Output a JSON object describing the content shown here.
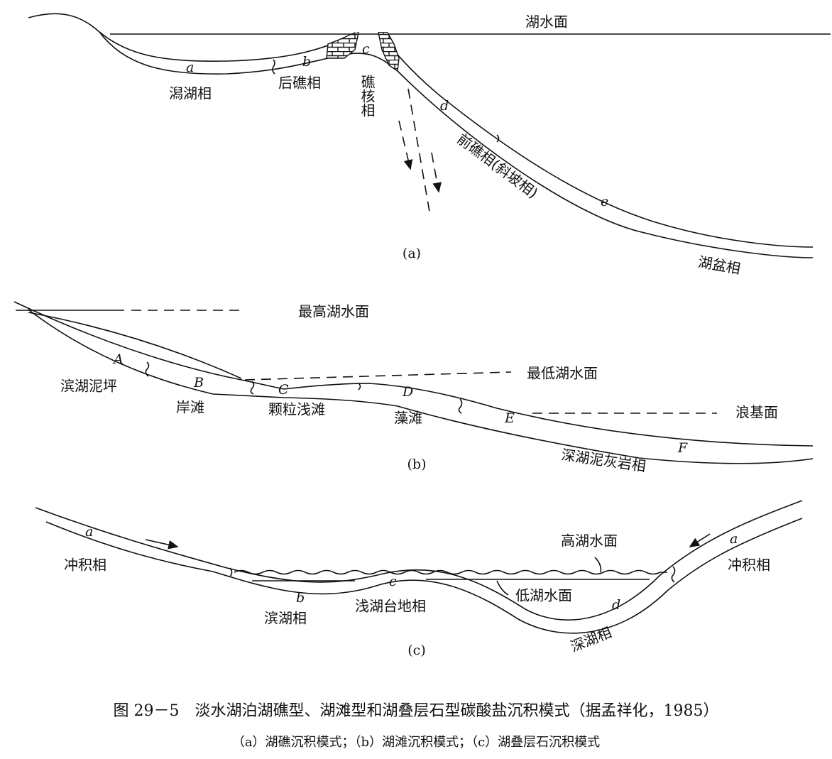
{
  "panel_a": {
    "water_surface": "湖水面",
    "layers": [
      "a",
      "b",
      "c",
      "d",
      "e"
    ],
    "facies": [
      "潟湖相",
      "后礁相",
      "礁核相",
      "前礁相(斜坡相)",
      "湖盆相"
    ],
    "label": "(a)"
  },
  "panel_b": {
    "levels": [
      "最高湖水面",
      "最低湖水面",
      "浪基面"
    ],
    "layers": [
      "A",
      "B",
      "C",
      "D",
      "E",
      "F"
    ],
    "facies": [
      "滨湖泥坪",
      "岸滩",
      "颗粒浅滩",
      "藻滩",
      "深湖泥灰岩相"
    ],
    "label": "(b)"
  },
  "panel_c": {
    "levels": [
      "高湖水面",
      "低湖水面"
    ],
    "layers": [
      "a",
      "b",
      "c",
      "d",
      "a"
    ],
    "facies": [
      "冲积相",
      "冲积相",
      "滨湖相",
      "浅湖台地相",
      "深湖相"
    ],
    "label": "(c)"
  },
  "caption": {
    "title": "图 29－5　淡水湖泊湖礁型、湖滩型和湖叠层石型碳酸盐沉积模式（据孟祥化，1985）",
    "subtitle": "（a）湖礁沉积模式；（b）湖滩沉积模式；（c）湖叠层石沉积模式"
  }
}
